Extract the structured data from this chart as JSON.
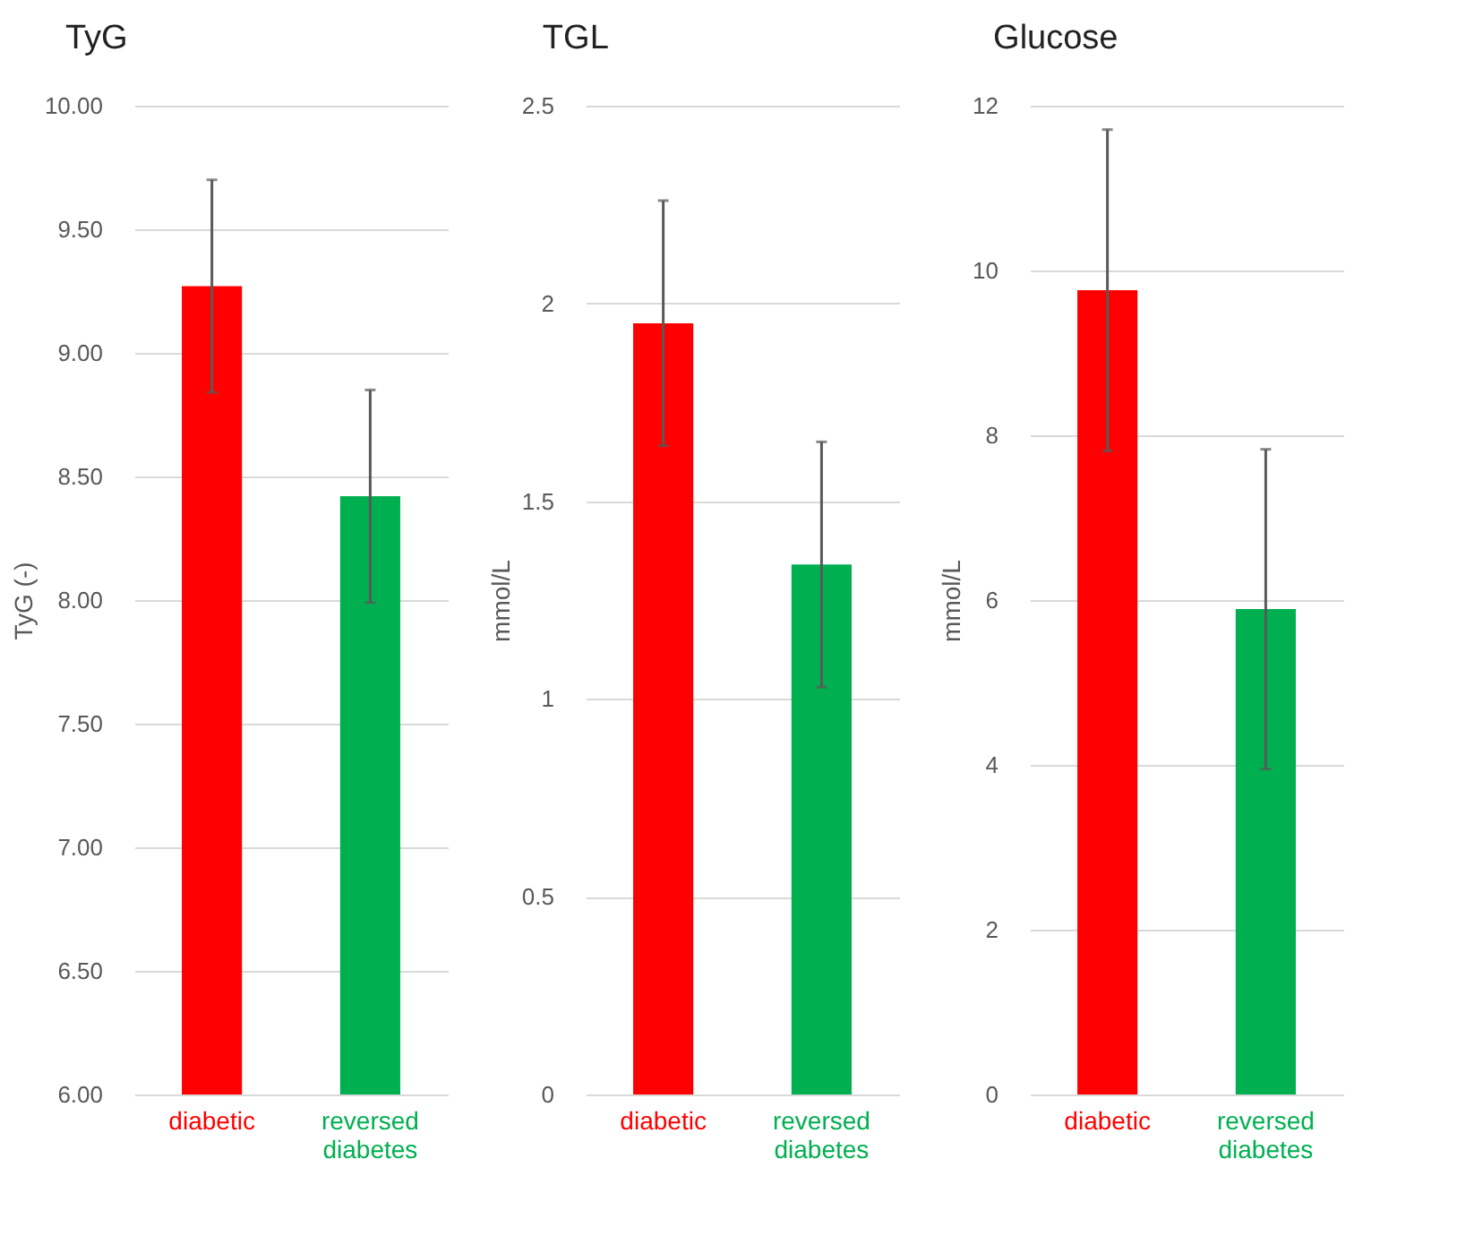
{
  "chart_data": [
    {
      "type": "bar",
      "title": "TyG",
      "ylabel": "TyG (-)",
      "categories": [
        "diabetic",
        "reversed diabetes"
      ],
      "values": [
        9.27,
        8.42
      ],
      "errors": [
        0.43,
        0.43
      ],
      "colors": [
        "#ff0000",
        "#00b050"
      ],
      "ylim": [
        6,
        10
      ],
      "yticks": [
        {
          "value": 6,
          "label": "6.00"
        },
        {
          "value": 6.5,
          "label": "6.50"
        },
        {
          "value": 7,
          "label": "7.00"
        },
        {
          "value": 7.5,
          "label": "7.50"
        },
        {
          "value": 8,
          "label": "8.00"
        },
        {
          "value": 8.5,
          "label": "8.50"
        },
        {
          "value": 9,
          "label": "9.00"
        },
        {
          "value": 9.5,
          "label": "9.50"
        },
        {
          "value": 10,
          "label": "10.00"
        }
      ],
      "grid": "y"
    },
    {
      "type": "bar",
      "title": "TGL",
      "ylabel": "mmol/L",
      "categories": [
        "diabetic",
        "reversed diabetes"
      ],
      "values": [
        1.95,
        1.34
      ],
      "errors": [
        0.31,
        0.31
      ],
      "colors": [
        "#ff0000",
        "#00b050"
      ],
      "ylim": [
        0,
        2.5
      ],
      "yticks": [
        0,
        0.5,
        1,
        1.5,
        2,
        2.5
      ],
      "grid": "y"
    },
    {
      "type": "bar",
      "title": "Glucose",
      "ylabel": "mmol/L",
      "categories": [
        "diabetic",
        "reversed diabetes"
      ],
      "values": [
        9.76,
        5.89
      ],
      "errors": [
        1.95,
        1.94
      ],
      "colors": [
        "#ff0000",
        "#00b050"
      ],
      "ylim": [
        0,
        12
      ],
      "yticks": [
        0,
        2,
        4,
        6,
        8,
        10,
        12
      ],
      "grid": "y"
    }
  ]
}
